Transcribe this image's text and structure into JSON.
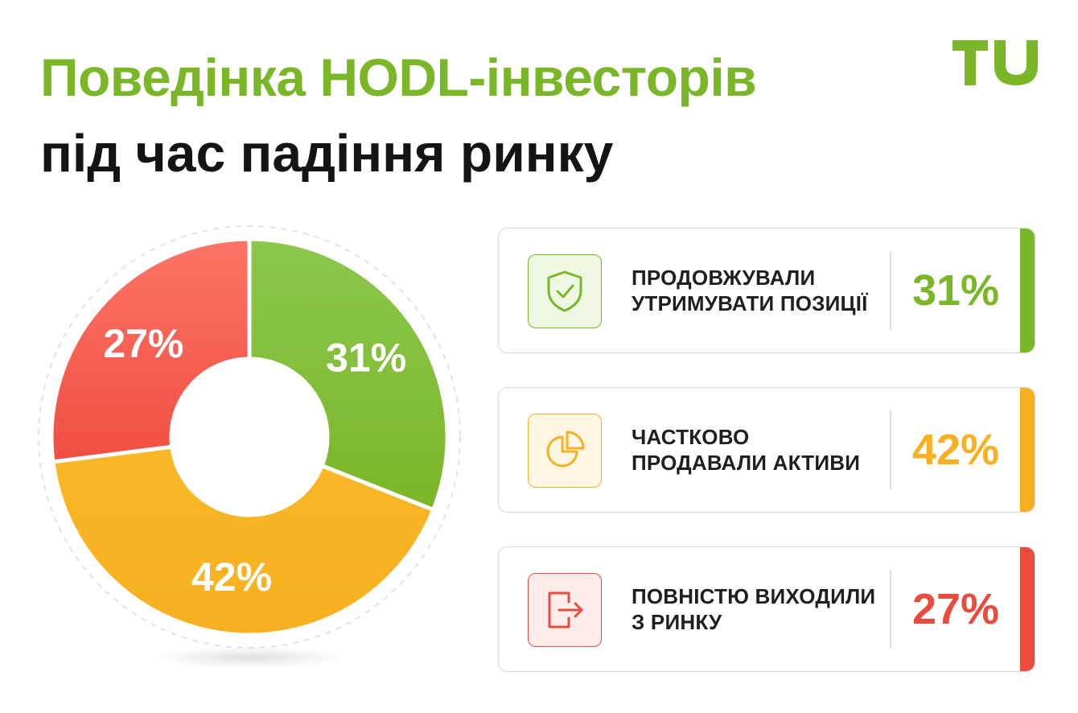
{
  "header": {
    "title_line1": "Поведінка HODL-інвесторів",
    "title_line2": "під час падіння ринку",
    "logo_text": "TU"
  },
  "colors": {
    "green": "#7ab728",
    "orange": "#f6b021",
    "red": "#e94b3c",
    "title_green": "#7ab728"
  },
  "chart_data": {
    "type": "pie",
    "style": "donut",
    "slices": [
      {
        "label": "31%",
        "value": 31,
        "color": "#7ab728",
        "color_light": "#8cc74e"
      },
      {
        "label": "42%",
        "value": 42,
        "color": "#f6b021",
        "color_light": "#fbb726"
      },
      {
        "label": "27%",
        "value": 27,
        "color": "#ef4f42",
        "color_light": "#fd7466"
      }
    ]
  },
  "cards": [
    {
      "label": "ПРОДОВЖУВАЛИ УТРИМУВАТИ ПОЗИЦІЇ",
      "value": "31%",
      "icon": "shield-check-icon",
      "color": "#7ab728",
      "icon_bg": "#eef6e4"
    },
    {
      "label": "ЧАСТКОВО ПРОДАВАЛИ АКТИВИ",
      "value": "42%",
      "icon": "pie-chart-icon",
      "color": "#f6b021",
      "icon_bg": "#fef6e3"
    },
    {
      "label": "ПОВНІСТЮ ВИХОДИЛИ З РИНКУ",
      "value": "27%",
      "icon": "exit-door-icon",
      "color": "#e94b3c",
      "icon_bg": "#fdecea"
    }
  ]
}
